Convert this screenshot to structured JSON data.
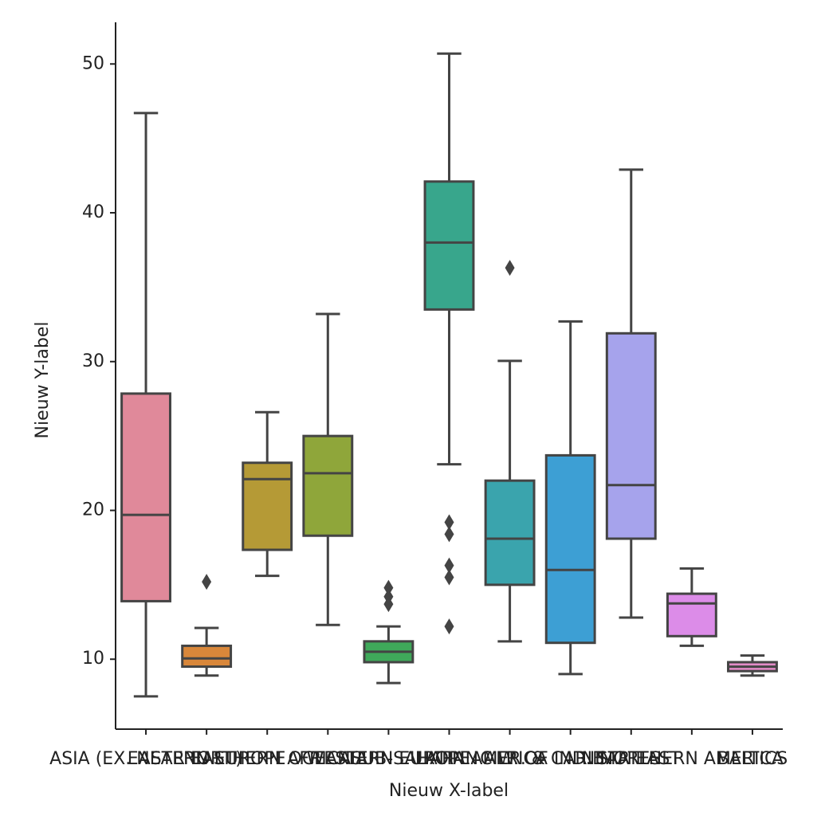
{
  "chart_data": {
    "type": "box",
    "xlabel": "Nieuw X-label",
    "ylabel": "Nieuw Y-label",
    "categories": [
      "ASIA (EX. NEAR EAST)",
      "EASTERN EUROPE",
      "NORTHERN AFRICA",
      "OCEANIA",
      "WESTERN EUROPE",
      "SUB-SAHARAN AFRICA",
      "LATIN AMER. & CARIB",
      "C.W. OF IND. STATES",
      "NEAR EAST",
      "NORTHERN AMERICA",
      "BALTICS"
    ],
    "boxes": [
      {
        "low": 7.5,
        "q1": 13.9,
        "median": 19.7,
        "q3": 27.85,
        "high": 46.7,
        "outliers": [],
        "color": "#e0899a"
      },
      {
        "low": 8.9,
        "q1": 9.5,
        "median": 10.05,
        "q3": 10.9,
        "high": 12.1,
        "outliers": [
          15.2
        ],
        "color": "#d9873a"
      },
      {
        "low": 15.6,
        "q1": 17.35,
        "median": 22.1,
        "q3": 23.2,
        "high": 26.6,
        "outliers": [],
        "color": "#b59a36"
      },
      {
        "low": 12.3,
        "q1": 18.3,
        "median": 22.5,
        "q3": 25.0,
        "high": 33.2,
        "outliers": [],
        "color": "#8fa63a"
      },
      {
        "low": 8.4,
        "q1": 9.8,
        "median": 10.5,
        "q3": 11.2,
        "high": 12.2,
        "outliers": [
          14.8,
          14.2,
          13.7
        ],
        "color": "#3fa95a"
      },
      {
        "low": 23.1,
        "q1": 33.5,
        "median": 38.0,
        "q3": 42.1,
        "high": 50.7,
        "outliers": [
          19.2,
          18.4,
          16.3,
          15.5,
          12.2
        ],
        "color": "#38a68c"
      },
      {
        "low": 11.2,
        "q1": 15.0,
        "median": 18.1,
        "q3": 22.0,
        "high": 30.05,
        "outliers": [
          36.3
        ],
        "color": "#3aa4ad"
      },
      {
        "low": 9.0,
        "q1": 11.1,
        "median": 16.0,
        "q3": 23.7,
        "high": 32.7,
        "outliers": [],
        "color": "#3d9fd4"
      },
      {
        "low": 12.8,
        "q1": 18.1,
        "median": 21.7,
        "q3": 31.9,
        "high": 42.9,
        "outliers": [],
        "color": "#a6a3ec"
      },
      {
        "low": 10.9,
        "q1": 11.55,
        "median": 13.75,
        "q3": 14.4,
        "high": 16.1,
        "outliers": [],
        "color": "#dc8ce8"
      },
      {
        "low": 8.9,
        "q1": 9.2,
        "median": 9.5,
        "q3": 9.8,
        "high": 10.25,
        "outliers": [],
        "color": "#e38bc8"
      }
    ],
    "ylim": [
      5.3,
      52.8
    ],
    "yticks": [
      10,
      20,
      30,
      40,
      50
    ]
  }
}
